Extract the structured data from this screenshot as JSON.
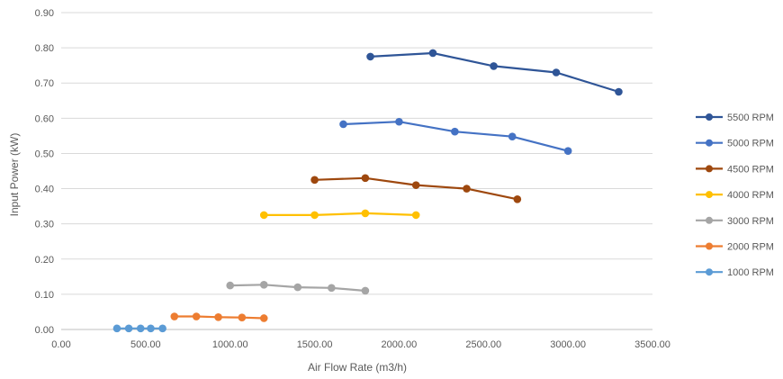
{
  "chart_data": {
    "type": "scatter",
    "xlabel": "Air Flow Rate (m3/h)",
    "ylabel": "Input Power (kW)",
    "xlim": [
      0,
      3500
    ],
    "ylim": [
      0,
      0.9
    ],
    "x_ticks": [
      "0.00",
      "500.00",
      "1000.00",
      "1500.00",
      "2000.00",
      "2500.00",
      "3000.00",
      "3500.00"
    ],
    "y_ticks": [
      "0.00",
      "0.10",
      "0.20",
      "0.30",
      "0.40",
      "0.50",
      "0.60",
      "0.70",
      "0.80",
      "0.90"
    ],
    "grid": "horizontal",
    "legend_position": "right",
    "series": [
      {
        "name": "5500 RPM",
        "color": "#2f5597",
        "points": [
          [
            1830,
            0.775
          ],
          [
            2200,
            0.785
          ],
          [
            2560,
            0.748
          ],
          [
            2930,
            0.73
          ],
          [
            3300,
            0.675
          ]
        ]
      },
      {
        "name": "5000 RPM",
        "color": "#4472c4",
        "points": [
          [
            1670,
            0.583
          ],
          [
            2000,
            0.59
          ],
          [
            2330,
            0.562
          ],
          [
            2670,
            0.548
          ],
          [
            3000,
            0.507
          ]
        ]
      },
      {
        "name": "4500 RPM",
        "color": "#9e480e",
        "points": [
          [
            1500,
            0.425
          ],
          [
            1800,
            0.43
          ],
          [
            2100,
            0.41
          ],
          [
            2400,
            0.4
          ],
          [
            2700,
            0.37
          ]
        ]
      },
      {
        "name": "4000 RPM",
        "color": "#ffc000",
        "points": [
          [
            1200,
            0.325
          ],
          [
            1500,
            0.325
          ],
          [
            1800,
            0.33
          ],
          [
            2100,
            0.325
          ]
        ]
      },
      {
        "name": "3000 RPM",
        "color": "#a5a5a5",
        "points": [
          [
            1000,
            0.125
          ],
          [
            1200,
            0.127
          ],
          [
            1400,
            0.12
          ],
          [
            1600,
            0.118
          ],
          [
            1800,
            0.11
          ]
        ]
      },
      {
        "name": "2000 RPM",
        "color": "#ed7d31",
        "points": [
          [
            670,
            0.037
          ],
          [
            800,
            0.037
          ],
          [
            930,
            0.035
          ],
          [
            1070,
            0.034
          ],
          [
            1200,
            0.032
          ]
        ]
      },
      {
        "name": "1000 RPM",
        "color": "#5b9bd5",
        "points": [
          [
            330,
            0.003
          ],
          [
            400,
            0.003
          ],
          [
            470,
            0.003
          ],
          [
            530,
            0.003
          ],
          [
            600,
            0.003
          ]
        ]
      }
    ]
  }
}
